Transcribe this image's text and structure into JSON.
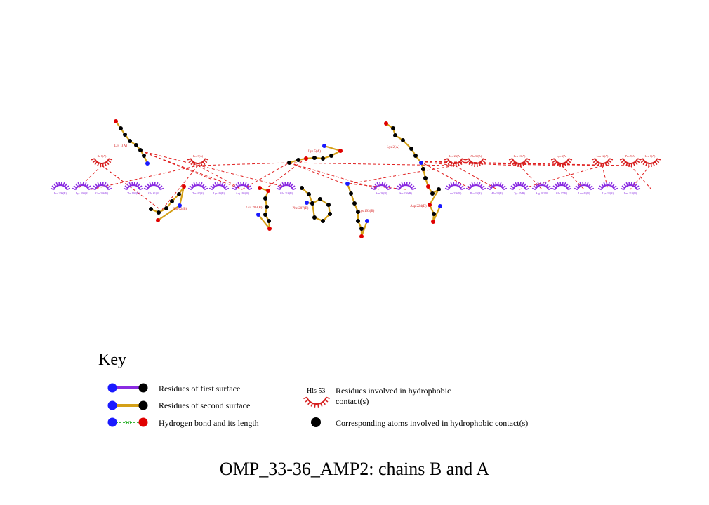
{
  "title": "OMP_33-36_AMP2: chains B and A",
  "key": {
    "heading": "Key",
    "first_surface": "Residues of first surface",
    "second_surface": "Residues of second surface",
    "hbond": "Hydrogen bond and its length",
    "hbond_example": "3.0",
    "hydrophobic_example": "His 53",
    "hydrophobic_line1": "Residues involved in hydrophobic",
    "hydrophobic_line2": "contact(s)",
    "atoms": "Corresponding atoms involved in hydrophobic contact(s)"
  },
  "colors": {
    "chain_b": "#8a2be2",
    "chain_a": "#d62020",
    "bond": "#d4a017",
    "carbon": "#000000",
    "nitrogen": "#1a1aff",
    "oxygen": "#e00000",
    "contact": "#e02020",
    "hbond": "#00a000"
  },
  "chain_b_residues": [
    "Pro 209(B)",
    "Lys 200(B)",
    "Glu 236(B)",
    "Thr 192(B)",
    "Glu 61(B)",
    "Thr 47(B)",
    "Lys 49(B)",
    "Arg 195(B)",
    "Glu 216(B)",
    "Asn 26(B)",
    "Ser 226(B)",
    "Leu 236(B)",
    "Pro 24(B)",
    "Ala 28(B)",
    "Tyr 45(B)",
    "Arg 202(B)",
    "Glu 17(B)",
    "Leu 41(B)",
    "Lys 22(B)",
    "Leu 110(B)"
  ],
  "chain_a_residues": [
    "Ile 8(A)",
    "Pro 3(A)",
    "Lys 23(A)",
    "Ala 30(A)",
    "Leu 13(A)",
    "Lys 4(A)",
    "Leu 12(A)",
    "Pro 7(A)",
    "Leu 6(A)"
  ],
  "ligands": {
    "lys_a1": "Lys 1(A)",
    "gln_b": "Gln 62(B)",
    "lys_a5": "Lys 5(A)",
    "glu_b": "Glu 209(B)",
    "phe_b": "Phe 207(B)",
    "lys_b": "Lys 193(B)",
    "lys_a2": "Lys 2(A)",
    "asp_b": "Asp 224(B)"
  }
}
